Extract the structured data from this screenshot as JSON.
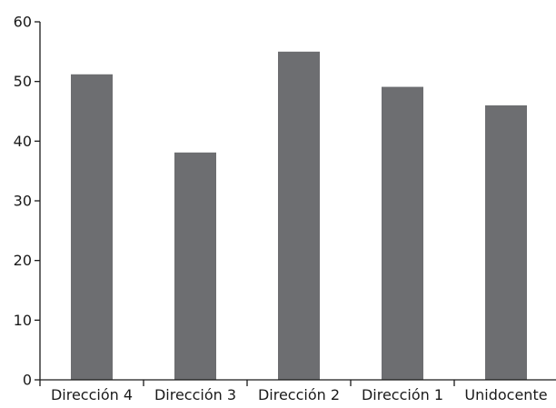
{
  "chart_data": {
    "type": "bar",
    "title": "",
    "xlabel": "",
    "ylabel": "",
    "categories": [
      "Dirección 4",
      "Dirección 3",
      "Dirección 2",
      "Dirección 1",
      "Unidocente"
    ],
    "values": [
      51.2,
      38.1,
      55.0,
      49.1,
      46.0
    ],
    "ylim": [
      0,
      60
    ],
    "yticks": [
      0,
      10,
      20,
      30,
      40,
      50,
      60
    ],
    "grid": false,
    "legend": "none",
    "bar_color": "#6d6e71",
    "axis_color": "#1a1a1a"
  }
}
